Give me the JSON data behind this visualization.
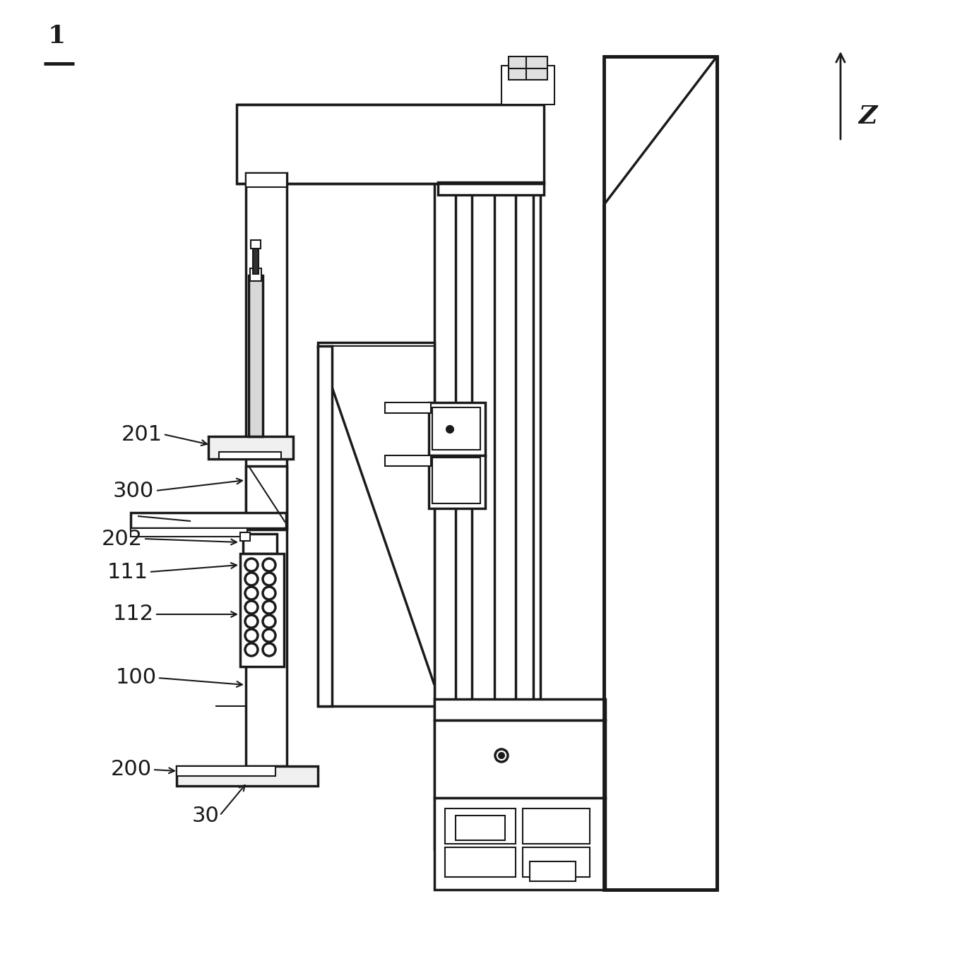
{
  "bg_color": "#ffffff",
  "lc": "#1a1a1a",
  "lw": 1.5,
  "lw2": 2.5,
  "lw3": 3.5
}
